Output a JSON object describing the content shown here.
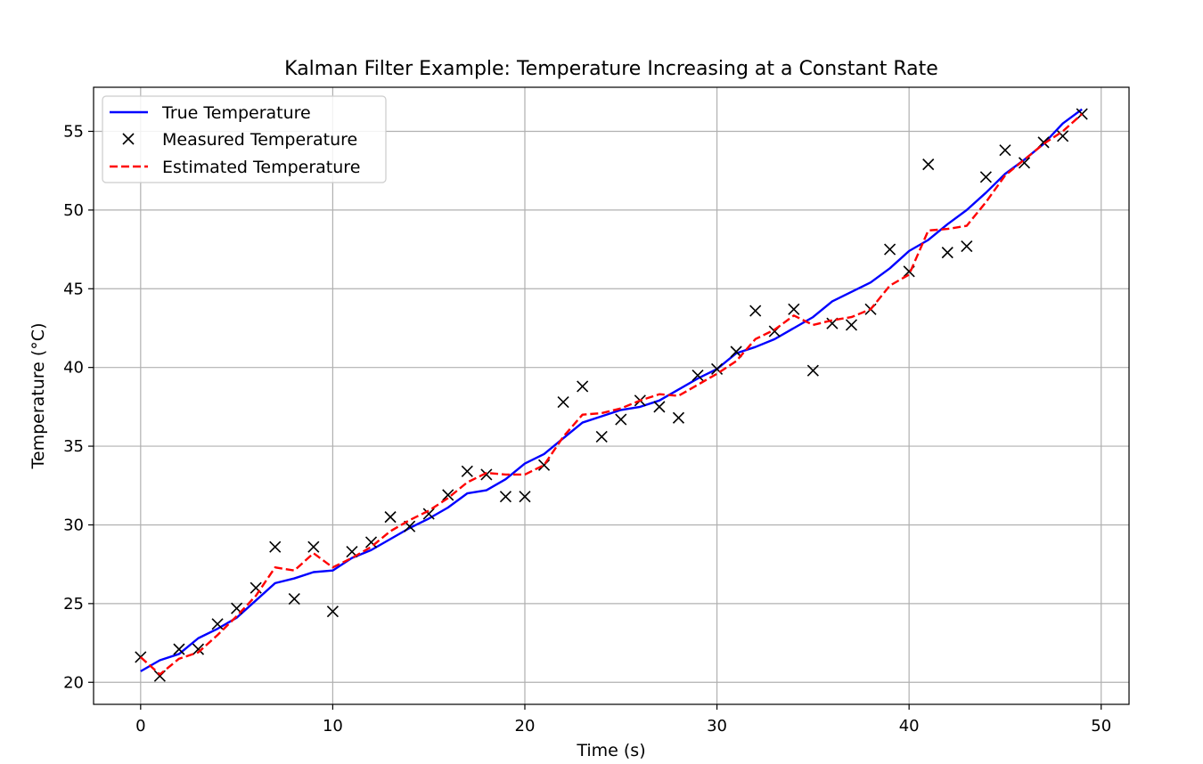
{
  "chart_data": {
    "type": "line",
    "title": "Kalman Filter Example: Temperature Increasing at a Constant Rate",
    "xlabel": "Time (s)",
    "ylabel": "Temperature (°C)",
    "xlim": [
      -2.45,
      51.45
    ],
    "ylim": [
      18.6,
      57.8
    ],
    "xticks": [
      0,
      10,
      20,
      30,
      40,
      50
    ],
    "yticks": [
      20,
      25,
      30,
      35,
      40,
      45,
      50,
      55
    ],
    "grid": true,
    "legend_position": "top-left",
    "x": [
      0,
      1,
      2,
      3,
      4,
      5,
      6,
      7,
      8,
      9,
      10,
      11,
      12,
      13,
      14,
      15,
      16,
      17,
      18,
      19,
      20,
      21,
      22,
      23,
      24,
      25,
      26,
      27,
      28,
      29,
      30,
      31,
      32,
      33,
      34,
      35,
      36,
      37,
      38,
      39,
      40,
      41,
      42,
      43,
      44,
      45,
      46,
      47,
      48,
      49
    ],
    "series": [
      {
        "name": "True Temperature",
        "style": "solid-line",
        "color": "#0000ff",
        "values": [
          20.7,
          21.4,
          21.8,
          22.8,
          23.4,
          24.1,
          25.2,
          26.3,
          26.6,
          27.0,
          27.1,
          27.9,
          28.4,
          29.1,
          29.8,
          30.4,
          31.1,
          32.0,
          32.2,
          32.9,
          33.9,
          34.5,
          35.5,
          36.5,
          36.9,
          37.3,
          37.5,
          37.9,
          38.6,
          39.3,
          39.9,
          40.9,
          41.3,
          41.8,
          42.5,
          43.2,
          44.2,
          44.8,
          45.4,
          46.3,
          47.4,
          48.1,
          49.1,
          50.0,
          51.1,
          52.3,
          53.2,
          54.2,
          55.5,
          56.4
        ]
      },
      {
        "name": "Measured Temperature",
        "style": "x-marker",
        "color": "#000000",
        "values": [
          21.6,
          20.4,
          22.1,
          22.1,
          23.7,
          24.7,
          26.0,
          28.6,
          25.3,
          28.6,
          24.5,
          28.3,
          28.9,
          30.5,
          29.9,
          30.7,
          31.9,
          33.4,
          33.2,
          31.8,
          31.8,
          33.8,
          37.8,
          38.8,
          35.6,
          36.7,
          37.9,
          37.5,
          36.8,
          39.5,
          39.9,
          41.0,
          43.6,
          42.3,
          43.7,
          39.8,
          42.8,
          42.7,
          43.7,
          47.5,
          46.1,
          52.9,
          47.3,
          47.7,
          52.1,
          53.8,
          53.0,
          54.3,
          54.7,
          56.1
        ]
      },
      {
        "name": "Estimated Temperature",
        "style": "dashed-line",
        "color": "#ff0000",
        "values": [
          21.6,
          20.5,
          21.5,
          21.9,
          23.0,
          24.2,
          25.5,
          27.3,
          27.1,
          28.2,
          27.3,
          27.9,
          28.6,
          29.6,
          30.3,
          30.9,
          31.7,
          32.7,
          33.3,
          33.2,
          33.2,
          33.8,
          35.6,
          37.0,
          37.1,
          37.4,
          37.9,
          38.3,
          38.2,
          38.9,
          39.6,
          40.4,
          41.8,
          42.4,
          43.3,
          42.7,
          43.0,
          43.2,
          43.7,
          45.2,
          45.9,
          48.7,
          48.8,
          49.0,
          50.5,
          52.2,
          53.2,
          54.2,
          55.0,
          56.1
        ]
      }
    ]
  }
}
